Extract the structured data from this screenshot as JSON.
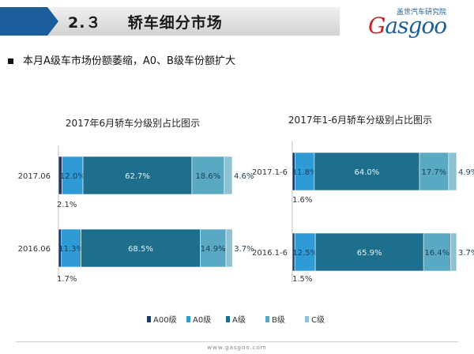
{
  "header": {
    "section_number": "2.３",
    "title": "轿车细分市场",
    "logo_cn": "盖世汽车研究院",
    "logo_mark_g": "G",
    "logo_mark_rest": "asgoo"
  },
  "bullet_text": "本月A级车市场份额萎缩，A0、B级车份额扩大",
  "footer": {
    "url": "www.gasgoo.com"
  },
  "colors": {
    "A00级": "#1f3864",
    "A0级": "#2e9ad6",
    "A级": "#1e6f8e",
    "B级": "#5aa9c3",
    "C级": "#8ec1d2"
  },
  "chart_data": [
    {
      "type": "bar",
      "orientation": "horizontal",
      "stacked": true,
      "title": "2017年6月轿车分级别占比图示",
      "categories": [
        "2017.06",
        "2016.06"
      ],
      "series": [
        {
          "name": "A00级",
          "values": [
            2.1,
            1.7
          ],
          "labels": [
            "2.1%",
            "1.7%"
          ]
        },
        {
          "name": "A0级",
          "values": [
            12.0,
            11.3
          ],
          "labels": [
            "12.0%",
            "11.3%"
          ]
        },
        {
          "name": "A级",
          "values": [
            62.7,
            68.5
          ],
          "labels": [
            "62.7%",
            "68.5%"
          ]
        },
        {
          "name": "B级",
          "values": [
            18.6,
            14.9
          ],
          "labels": [
            "18.6%",
            "14.9%"
          ]
        },
        {
          "name": "C级",
          "values": [
            4.6,
            3.7
          ],
          "labels": [
            "4.6%",
            "3.7%"
          ]
        }
      ],
      "xlim": [
        0,
        100
      ]
    },
    {
      "type": "bar",
      "orientation": "horizontal",
      "stacked": true,
      "title": "2017年1-6月轿车分级别占比图示",
      "categories": [
        "2017.1-6",
        "2016.1-6"
      ],
      "series": [
        {
          "name": "A00级",
          "values": [
            1.6,
            1.5
          ],
          "labels": [
            "1.6%",
            "1.5%"
          ]
        },
        {
          "name": "A0级",
          "values": [
            11.8,
            12.5
          ],
          "labels": [
            "11.8%",
            "12.5%"
          ]
        },
        {
          "name": "A级",
          "values": [
            64.0,
            65.9
          ],
          "labels": [
            "64.0%",
            "65.9%"
          ]
        },
        {
          "name": "B级",
          "values": [
            17.7,
            16.4
          ],
          "labels": [
            "17.7%",
            "16.4%"
          ]
        },
        {
          "name": "C级",
          "values": [
            4.9,
            3.7
          ],
          "labels": [
            "4.9%",
            "3.7%"
          ]
        }
      ],
      "xlim": [
        0,
        100
      ]
    }
  ],
  "legend": {
    "placement": "bottom",
    "items": [
      "A00级",
      "A0级",
      "A级",
      "B级",
      "C级"
    ]
  }
}
